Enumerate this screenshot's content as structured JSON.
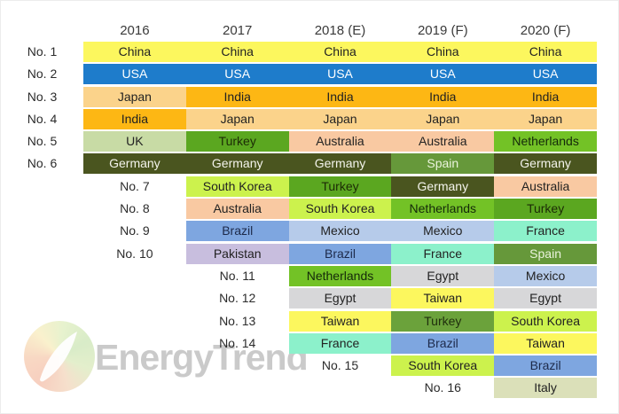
{
  "header": {
    "columns": [
      "2016",
      "2017",
      "2018 (E)",
      "2019 (F)",
      "2020 (F)"
    ]
  },
  "watermark": {
    "brand": "EnergyTrend"
  },
  "palette": {
    "yellow": {
      "bg": "#fcf75e",
      "fg": "#222222"
    },
    "blue": {
      "bg": "#1e7ccb",
      "fg": "#ffffff"
    },
    "orange": {
      "bg": "#fdb714",
      "fg": "#222222"
    },
    "light_orange": {
      "bg": "#fbd38b",
      "fg": "#222222"
    },
    "pale_green": {
      "bg": "#c8dba5",
      "fg": "#222222"
    },
    "kelly_green": {
      "bg": "#5ba720",
      "fg": "#1c2b06"
    },
    "dark_olive": {
      "bg": "#4a551f",
      "fg": "#f4f4ec"
    },
    "yellow_green": {
      "bg": "#ccf24d",
      "fg": "#222222"
    },
    "peach": {
      "bg": "#f9c9a2",
      "fg": "#222222"
    },
    "cornflower": {
      "bg": "#7ea6e0",
      "fg": "#1d2a4a"
    },
    "lavender": {
      "bg": "#c8bede",
      "fg": "#222222"
    },
    "periwinkle": {
      "bg": "#b6cbea",
      "fg": "#222222"
    },
    "aqua": {
      "bg": "#8cf1cb",
      "fg": "#222222"
    },
    "mid_green": {
      "bg": "#73c226",
      "fg": "#14290a"
    },
    "spain_green": {
      "bg": "#66983a",
      "fg": "#eaf3dc"
    },
    "olive_green": {
      "bg": "#6ba23b",
      "fg": "#1f2e0d"
    },
    "gray": {
      "bg": "#d7d7d9",
      "fg": "#222222"
    },
    "italy_green": {
      "bg": "#dbe0b9",
      "fg": "#222222"
    }
  },
  "rows": [
    {
      "rank": "No. 1",
      "label_col": 0,
      "cells": [
        {
          "country": "China",
          "color": "yellow"
        },
        {
          "country": "China",
          "color": "yellow"
        },
        {
          "country": "China",
          "color": "yellow"
        },
        {
          "country": "China",
          "color": "yellow"
        },
        {
          "country": "China",
          "color": "yellow"
        }
      ]
    },
    {
      "rank": "No. 2",
      "label_col": 0,
      "cells": [
        {
          "country": "USA",
          "color": "blue"
        },
        {
          "country": "USA",
          "color": "blue"
        },
        {
          "country": "USA",
          "color": "blue"
        },
        {
          "country": "USA",
          "color": "blue"
        },
        {
          "country": "USA",
          "color": "blue"
        }
      ]
    },
    {
      "rank": "No. 3",
      "label_col": 0,
      "cells": [
        {
          "country": "Japan",
          "color": "light_orange"
        },
        {
          "country": "India",
          "color": "orange"
        },
        {
          "country": "India",
          "color": "orange"
        },
        {
          "country": "India",
          "color": "orange"
        },
        {
          "country": "India",
          "color": "orange"
        }
      ]
    },
    {
      "rank": "No. 4",
      "label_col": 0,
      "cells": [
        {
          "country": "India",
          "color": "orange"
        },
        {
          "country": "Japan",
          "color": "light_orange"
        },
        {
          "country": "Japan",
          "color": "light_orange"
        },
        {
          "country": "Japan",
          "color": "light_orange"
        },
        {
          "country": "Japan",
          "color": "light_orange"
        }
      ]
    },
    {
      "rank": "No. 5",
      "label_col": 0,
      "cells": [
        {
          "country": "UK",
          "color": "pale_green"
        },
        {
          "country": "Turkey",
          "color": "kelly_green"
        },
        {
          "country": "Australia",
          "color": "peach"
        },
        {
          "country": "Australia",
          "color": "peach"
        },
        {
          "country": "Netherlands",
          "color": "mid_green"
        }
      ]
    },
    {
      "rank": "No. 6",
      "label_col": 0,
      "cells": [
        {
          "country": "Germany",
          "color": "dark_olive"
        },
        {
          "country": "Germany",
          "color": "dark_olive"
        },
        {
          "country": "Germany",
          "color": "dark_olive"
        },
        {
          "country": "Spain",
          "color": "spain_green"
        },
        {
          "country": "Germany",
          "color": "dark_olive"
        }
      ]
    },
    {
      "rank": "No. 7",
      "label_col": 1,
      "cells": [
        null,
        {
          "country": "South Korea",
          "color": "yellow_green"
        },
        {
          "country": "Turkey",
          "color": "kelly_green"
        },
        {
          "country": "Germany",
          "color": "dark_olive"
        },
        {
          "country": "Australia",
          "color": "peach"
        }
      ]
    },
    {
      "rank": "No. 8",
      "label_col": 1,
      "cells": [
        null,
        {
          "country": "Australia",
          "color": "peach"
        },
        {
          "country": "South Korea",
          "color": "yellow_green"
        },
        {
          "country": "Netherlands",
          "color": "mid_green"
        },
        {
          "country": "Turkey",
          "color": "kelly_green"
        }
      ]
    },
    {
      "rank": "No. 9",
      "label_col": 1,
      "cells": [
        null,
        {
          "country": "Brazil",
          "color": "cornflower"
        },
        {
          "country": "Mexico",
          "color": "periwinkle"
        },
        {
          "country": "Mexico",
          "color": "periwinkle"
        },
        {
          "country": "France",
          "color": "aqua"
        }
      ]
    },
    {
      "rank": "No. 10",
      "label_col": 1,
      "cells": [
        null,
        {
          "country": "Pakistan",
          "color": "lavender"
        },
        {
          "country": "Brazil",
          "color": "cornflower"
        },
        {
          "country": "France",
          "color": "aqua"
        },
        {
          "country": "Spain",
          "color": "spain_green"
        }
      ]
    },
    {
      "rank": "No. 11",
      "label_col": 2,
      "cells": [
        null,
        null,
        {
          "country": "Netherlands",
          "color": "mid_green"
        },
        {
          "country": "Egypt",
          "color": "gray"
        },
        {
          "country": "Mexico",
          "color": "periwinkle"
        }
      ]
    },
    {
      "rank": "No. 12",
      "label_col": 2,
      "cells": [
        null,
        null,
        {
          "country": "Egypt",
          "color": "gray"
        },
        {
          "country": "Taiwan",
          "color": "yellow"
        },
        {
          "country": "Egypt",
          "color": "gray"
        }
      ]
    },
    {
      "rank": "No. 13",
      "label_col": 2,
      "cells": [
        null,
        null,
        {
          "country": "Taiwan",
          "color": "yellow"
        },
        {
          "country": "Turkey",
          "color": "olive_green"
        },
        {
          "country": "South Korea",
          "color": "yellow_green"
        }
      ]
    },
    {
      "rank": "No. 14",
      "label_col": 2,
      "cells": [
        null,
        null,
        {
          "country": "France",
          "color": "aqua"
        },
        {
          "country": "Brazil",
          "color": "cornflower"
        },
        {
          "country": "Taiwan",
          "color": "yellow"
        }
      ]
    },
    {
      "rank": "No. 15",
      "label_col": 3,
      "cells": [
        null,
        null,
        null,
        {
          "country": "South Korea",
          "color": "yellow_green"
        },
        {
          "country": "Brazil",
          "color": "cornflower"
        }
      ]
    },
    {
      "rank": "No. 16",
      "label_col": 4,
      "cells": [
        null,
        null,
        null,
        null,
        {
          "country": "Italy",
          "color": "italy_green"
        }
      ]
    }
  ],
  "chart_data": {
    "type": "table",
    "title": "",
    "columns": [
      "2016",
      "2017",
      "2018 (E)",
      "2019 (F)",
      "2020 (F)"
    ],
    "rank_labels": [
      "No. 1",
      "No. 2",
      "No. 3",
      "No. 4",
      "No. 5",
      "No. 6",
      "No. 7",
      "No. 8",
      "No. 9",
      "No. 10",
      "No. 11",
      "No. 12",
      "No. 13",
      "No. 14",
      "No. 15",
      "No. 16"
    ],
    "rankings": {
      "2016": [
        "China",
        "USA",
        "Japan",
        "India",
        "UK",
        "Germany"
      ],
      "2017": [
        "China",
        "USA",
        "India",
        "Japan",
        "Turkey",
        "Germany",
        "South Korea",
        "Australia",
        "Brazil",
        "Pakistan"
      ],
      "2018 (E)": [
        "China",
        "USA",
        "India",
        "Japan",
        "Australia",
        "Germany",
        "Turkey",
        "South Korea",
        "Mexico",
        "Brazil",
        "Netherlands",
        "Egypt",
        "Taiwan",
        "France"
      ],
      "2019 (F)": [
        "China",
        "USA",
        "India",
        "Japan",
        "Australia",
        "Spain",
        "Germany",
        "Netherlands",
        "Mexico",
        "France",
        "Egypt",
        "Taiwan",
        "Turkey",
        "Brazil",
        "South Korea"
      ],
      "2020 (F)": [
        "China",
        "USA",
        "India",
        "Japan",
        "Netherlands",
        "Germany",
        "Australia",
        "Turkey",
        "France",
        "Spain",
        "Mexico",
        "Egypt",
        "South Korea",
        "Taiwan",
        "Brazil",
        "Italy"
      ]
    }
  }
}
